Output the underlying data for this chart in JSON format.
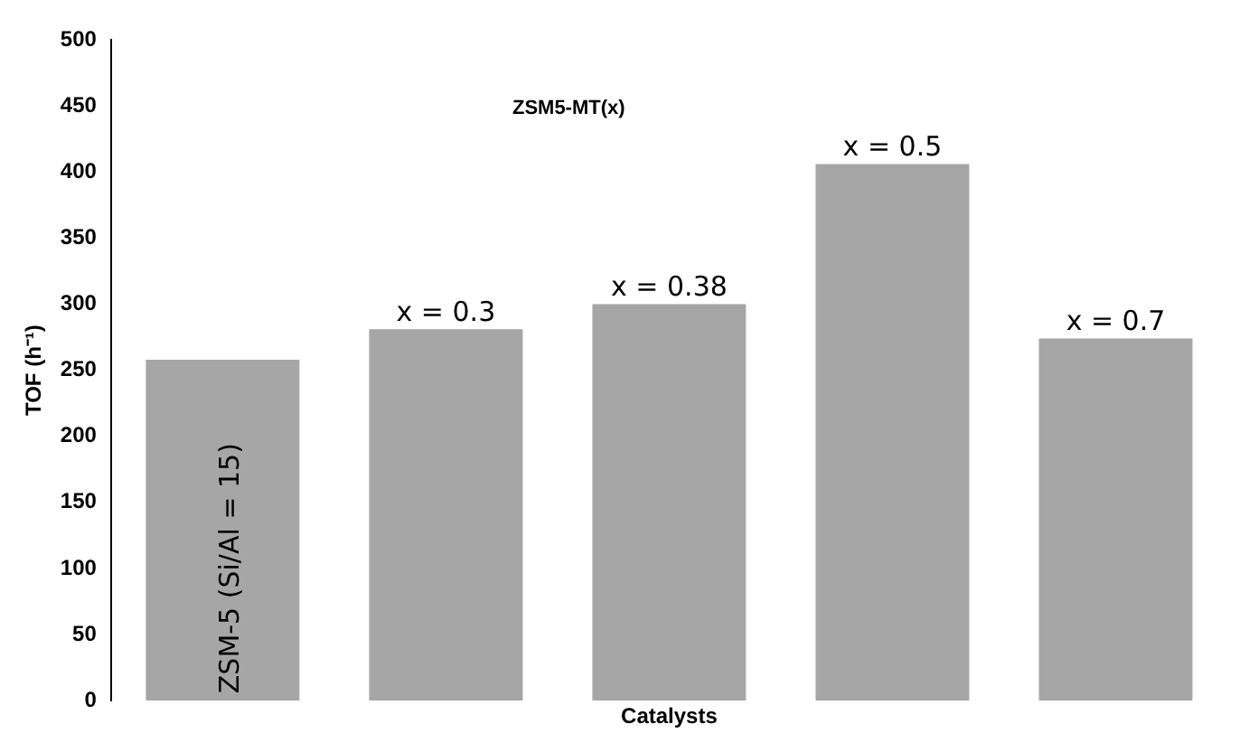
{
  "chart_data": {
    "type": "bar",
    "xlabel": "Catalysts",
    "ylabel": "TOF (h⁻¹)",
    "categories": [
      "ZSM-5 (Si/Al = 15)",
      "x = 0.3",
      "x = 0.38",
      "x = 0.5",
      "x = 0.7"
    ],
    "values": [
      258,
      281,
      300,
      406,
      274
    ],
    "color": "#a6a6a6",
    "ylim": [
      0,
      500
    ],
    "yticks": [
      0,
      50,
      100,
      150,
      200,
      250,
      300,
      350,
      400,
      450,
      500
    ],
    "grid": false,
    "legend": false,
    "annotations": [
      "ZSM5-MT(x)"
    ]
  }
}
